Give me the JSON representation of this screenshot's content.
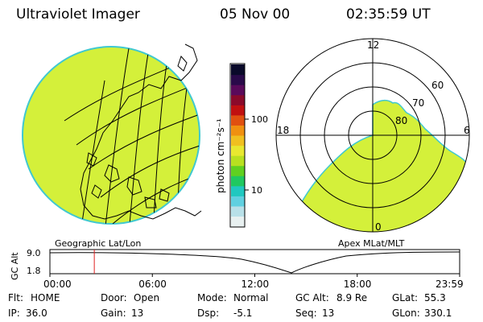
{
  "header": {
    "instrument": "Ultraviolet Imager",
    "date": "05 Nov 00",
    "time": "02:35:59 UT"
  },
  "colorbar": {
    "unit_label": "photon cm⁻²s⁻¹",
    "ticks": [
      "100",
      "10"
    ],
    "colors": [
      "#0a0a2a",
      "#2a0a4a",
      "#5a0a5a",
      "#8a0a2a",
      "#c01010",
      "#e05010",
      "#f09010",
      "#f0c020",
      "#e8e830",
      "#b8e020",
      "#60d020",
      "#20c860",
      "#20c8c0",
      "#60d0e0",
      "#b8e0e8",
      "#e8f0f0"
    ]
  },
  "left_panel": {
    "label": "Geographic Lat/Lon",
    "fill_color": "#d4f03a",
    "edge_color": "#40c8d0"
  },
  "right_panel": {
    "label": "Apex MLat/MLT",
    "mlt_labels": [
      "12",
      "18",
      "6",
      "0"
    ],
    "mlat_labels": [
      "60",
      "70",
      "80"
    ],
    "fill_color": "#d4f03a"
  },
  "gc_alt_plot": {
    "ylabel": "GC Alt",
    "ytick_top": "9.0",
    "ytick_bottom": "1.8",
    "xticks": [
      "00:00",
      "06:00",
      "12:00",
      "18:00",
      "23:59"
    ],
    "marker_time_hours": 2.6,
    "marker_color": "#e02020"
  },
  "info": {
    "row1": [
      {
        "k": "Flt:",
        "v": "HOME"
      },
      {
        "k": "Door:",
        "v": "Open"
      },
      {
        "k": "Mode:",
        "v": "Normal"
      },
      {
        "k": "GC Alt:",
        "v": "8.9 Re"
      },
      {
        "k": "GLat:",
        "v": "55.3"
      }
    ],
    "row2": [
      {
        "k": "IP:",
        "v": "36.0"
      },
      {
        "k": "Gain:",
        "v": "13"
      },
      {
        "k": "Dsp:",
        "v": "-5.1"
      },
      {
        "k": "Seq:",
        "v": "13"
      },
      {
        "k": "GLon:",
        "v": "330.1"
      }
    ]
  }
}
